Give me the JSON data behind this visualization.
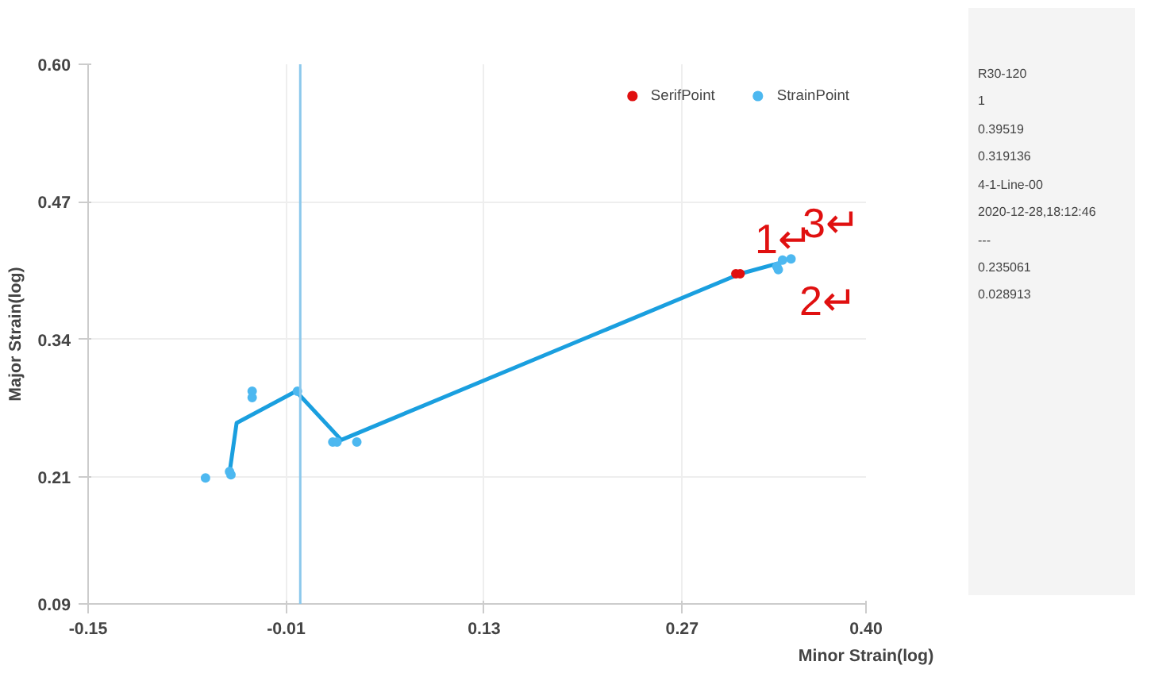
{
  "chart_data": {
    "type": "scatter",
    "xlabel": "Minor Strain(log)",
    "ylabel": "Major Strain(log)",
    "xlim": [
      -0.15,
      0.4
    ],
    "xticks": [
      -0.15,
      -0.01,
      0.13,
      0.27,
      {
        "value": 0.4,
        "label": "0.40"
      }
    ],
    "ylim": [
      0.09,
      0.6
    ],
    "yticks": [
      0.09,
      0.21,
      0.34,
      0.47,
      {
        "value": 0.6,
        "label": "0.60"
      }
    ],
    "grid": true,
    "legend": "top right",
    "series": [
      {
        "type": "line",
        "marker": "none",
        "color": "#1a9fdf",
        "x": [
          -0.05,
          -0.045,
          -0.003,
          0.029,
          0.311,
          0.341
        ],
        "values": [
          0.214,
          0.261,
          0.291,
          0.245,
          0.402,
          0.413
        ]
      },
      {
        "name": "SerifPoint",
        "marker": "circle",
        "color": "#e01010",
        "x": [
          0.308,
          0.311
        ],
        "values": [
          0.402,
          0.402
        ]
      },
      {
        "name": "StrainPoint",
        "marker": "circle",
        "color": "#4db8f0",
        "x": [
          -0.067,
          -0.05,
          -0.049,
          -0.034,
          -0.034,
          -0.002,
          0.023,
          0.026,
          0.04,
          0.337,
          0.338,
          0.341,
          0.347
        ],
        "values": [
          0.209,
          0.215,
          0.212,
          0.291,
          0.285,
          0.291,
          0.243,
          0.243,
          0.243,
          0.409,
          0.406,
          0.415,
          0.416
        ]
      }
    ],
    "ref_lines": [
      {
        "axis": "x",
        "value": 0.0,
        "color": "#8cc8ec"
      }
    ],
    "annotations": [
      "1↵",
      "3↵",
      "2↵",
      "R30-120",
      "1",
      "0.39519",
      "0.319136",
      "4-1-Line-00",
      "2020-12-28,18:12:46",
      "---",
      "0.235061",
      "0.028913"
    ]
  }
}
